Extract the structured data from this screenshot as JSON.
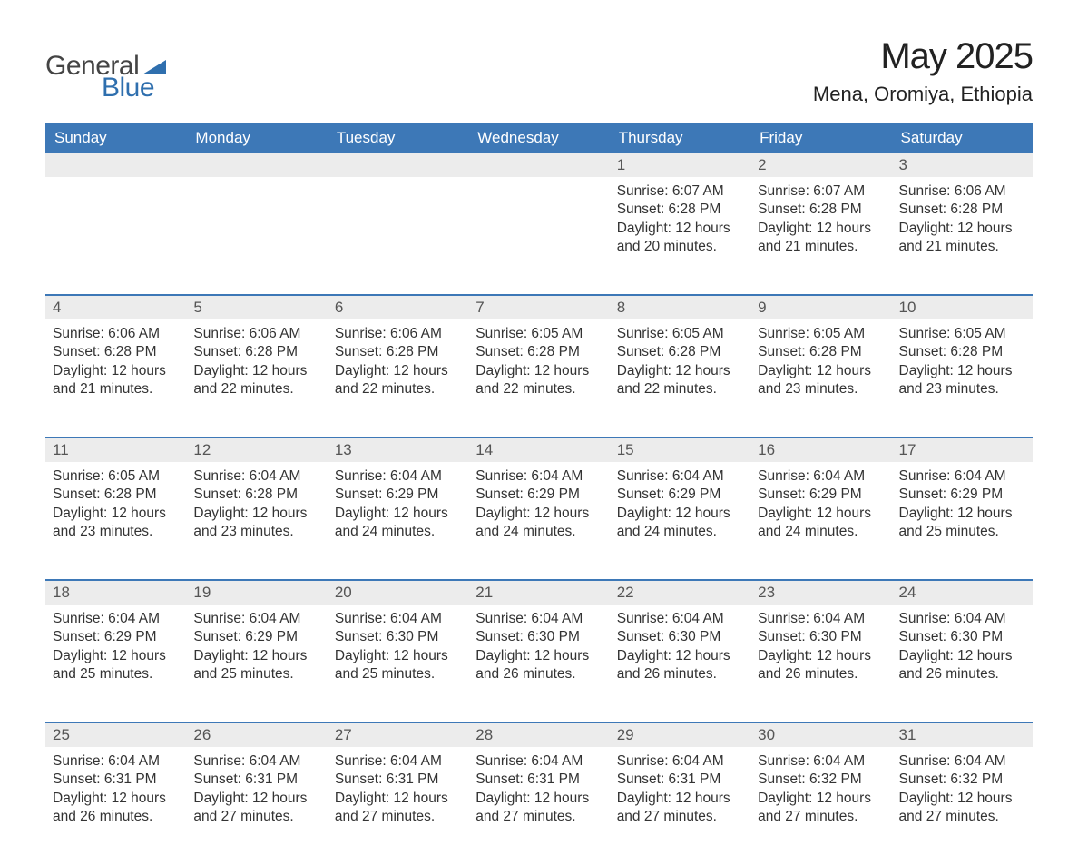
{
  "logo": {
    "text_general": "General",
    "text_blue": "Blue"
  },
  "title": "May 2025",
  "location": "Mena, Oromiya, Ethiopia",
  "colors": {
    "header_bg": "#3d78b7",
    "header_text": "#ffffff",
    "daynum_bg": "#ececec",
    "row_divider": "#3d78b7",
    "body_text": "#333333",
    "logo_general": "#444444",
    "logo_blue": "#2f6fae",
    "page_bg": "#ffffff"
  },
  "typography": {
    "title_fontsize": 40,
    "location_fontsize": 22,
    "weekday_fontsize": 17,
    "daynum_fontsize": 17,
    "cell_fontsize": 15.5,
    "font_family": "Arial"
  },
  "weekdays": [
    "Sunday",
    "Monday",
    "Tuesday",
    "Wednesday",
    "Thursday",
    "Friday",
    "Saturday"
  ],
  "labels": {
    "sunrise": "Sunrise:",
    "sunset": "Sunset:",
    "daylight": "Daylight:"
  },
  "weeks": [
    [
      null,
      null,
      null,
      null,
      {
        "day": "1",
        "sunrise": "6:07 AM",
        "sunset": "6:28 PM",
        "daylight": "12 hours and 20 minutes."
      },
      {
        "day": "2",
        "sunrise": "6:07 AM",
        "sunset": "6:28 PM",
        "daylight": "12 hours and 21 minutes."
      },
      {
        "day": "3",
        "sunrise": "6:06 AM",
        "sunset": "6:28 PM",
        "daylight": "12 hours and 21 minutes."
      }
    ],
    [
      {
        "day": "4",
        "sunrise": "6:06 AM",
        "sunset": "6:28 PM",
        "daylight": "12 hours and 21 minutes."
      },
      {
        "day": "5",
        "sunrise": "6:06 AM",
        "sunset": "6:28 PM",
        "daylight": "12 hours and 22 minutes."
      },
      {
        "day": "6",
        "sunrise": "6:06 AM",
        "sunset": "6:28 PM",
        "daylight": "12 hours and 22 minutes."
      },
      {
        "day": "7",
        "sunrise": "6:05 AM",
        "sunset": "6:28 PM",
        "daylight": "12 hours and 22 minutes."
      },
      {
        "day": "8",
        "sunrise": "6:05 AM",
        "sunset": "6:28 PM",
        "daylight": "12 hours and 22 minutes."
      },
      {
        "day": "9",
        "sunrise": "6:05 AM",
        "sunset": "6:28 PM",
        "daylight": "12 hours and 23 minutes."
      },
      {
        "day": "10",
        "sunrise": "6:05 AM",
        "sunset": "6:28 PM",
        "daylight": "12 hours and 23 minutes."
      }
    ],
    [
      {
        "day": "11",
        "sunrise": "6:05 AM",
        "sunset": "6:28 PM",
        "daylight": "12 hours and 23 minutes."
      },
      {
        "day": "12",
        "sunrise": "6:04 AM",
        "sunset": "6:28 PM",
        "daylight": "12 hours and 23 minutes."
      },
      {
        "day": "13",
        "sunrise": "6:04 AM",
        "sunset": "6:29 PM",
        "daylight": "12 hours and 24 minutes."
      },
      {
        "day": "14",
        "sunrise": "6:04 AM",
        "sunset": "6:29 PM",
        "daylight": "12 hours and 24 minutes."
      },
      {
        "day": "15",
        "sunrise": "6:04 AM",
        "sunset": "6:29 PM",
        "daylight": "12 hours and 24 minutes."
      },
      {
        "day": "16",
        "sunrise": "6:04 AM",
        "sunset": "6:29 PM",
        "daylight": "12 hours and 24 minutes."
      },
      {
        "day": "17",
        "sunrise": "6:04 AM",
        "sunset": "6:29 PM",
        "daylight": "12 hours and 25 minutes."
      }
    ],
    [
      {
        "day": "18",
        "sunrise": "6:04 AM",
        "sunset": "6:29 PM",
        "daylight": "12 hours and 25 minutes."
      },
      {
        "day": "19",
        "sunrise": "6:04 AM",
        "sunset": "6:29 PM",
        "daylight": "12 hours and 25 minutes."
      },
      {
        "day": "20",
        "sunrise": "6:04 AM",
        "sunset": "6:30 PM",
        "daylight": "12 hours and 25 minutes."
      },
      {
        "day": "21",
        "sunrise": "6:04 AM",
        "sunset": "6:30 PM",
        "daylight": "12 hours and 26 minutes."
      },
      {
        "day": "22",
        "sunrise": "6:04 AM",
        "sunset": "6:30 PM",
        "daylight": "12 hours and 26 minutes."
      },
      {
        "day": "23",
        "sunrise": "6:04 AM",
        "sunset": "6:30 PM",
        "daylight": "12 hours and 26 minutes."
      },
      {
        "day": "24",
        "sunrise": "6:04 AM",
        "sunset": "6:30 PM",
        "daylight": "12 hours and 26 minutes."
      }
    ],
    [
      {
        "day": "25",
        "sunrise": "6:04 AM",
        "sunset": "6:31 PM",
        "daylight": "12 hours and 26 minutes."
      },
      {
        "day": "26",
        "sunrise": "6:04 AM",
        "sunset": "6:31 PM",
        "daylight": "12 hours and 27 minutes."
      },
      {
        "day": "27",
        "sunrise": "6:04 AM",
        "sunset": "6:31 PM",
        "daylight": "12 hours and 27 minutes."
      },
      {
        "day": "28",
        "sunrise": "6:04 AM",
        "sunset": "6:31 PM",
        "daylight": "12 hours and 27 minutes."
      },
      {
        "day": "29",
        "sunrise": "6:04 AM",
        "sunset": "6:31 PM",
        "daylight": "12 hours and 27 minutes."
      },
      {
        "day": "30",
        "sunrise": "6:04 AM",
        "sunset": "6:32 PM",
        "daylight": "12 hours and 27 minutes."
      },
      {
        "day": "31",
        "sunrise": "6:04 AM",
        "sunset": "6:32 PM",
        "daylight": "12 hours and 27 minutes."
      }
    ]
  ]
}
